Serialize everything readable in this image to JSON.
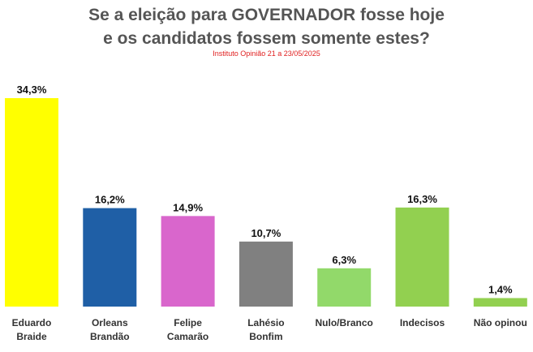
{
  "title_lines": [
    "Se a eleição para GOVERNADOR fosse hoje",
    "e os candidatos fossem somente estes?"
  ],
  "subtitle": "Instituto Opinião 21 a 23/05/2025",
  "chart_data": {
    "type": "bar",
    "categories": [
      [
        "Eduardo",
        "Braide"
      ],
      [
        "Orleans",
        "Brandão"
      ],
      [
        "Felipe",
        "Camarão"
      ],
      [
        "Lahésio",
        "Bonfim"
      ],
      [
        "Nulo/Branco"
      ],
      [
        "Indecisos"
      ],
      [
        "Não opinou"
      ]
    ],
    "values": [
      34.3,
      16.2,
      14.9,
      10.7,
      6.3,
      16.3,
      1.4
    ],
    "value_labels": [
      "34,3%",
      "16,2%",
      "14,9%",
      "10,7%",
      "6,3%",
      "16,3%",
      "1,4%"
    ],
    "colors": [
      "#ffff00",
      "#1f5fa6",
      "#d966cc",
      "#808080",
      "#92d96a",
      "#92d050",
      "#92d050"
    ],
    "ylim": [
      0,
      34.3
    ],
    "grid": false,
    "legend": "none"
  }
}
